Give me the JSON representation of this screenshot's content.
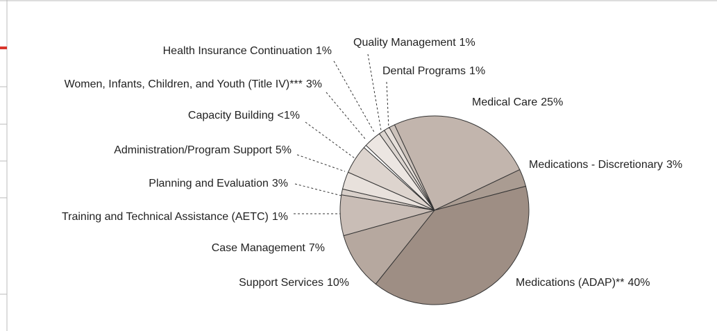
{
  "chart_data": {
    "type": "pie",
    "categories": [
      "Quality Management",
      "Dental Programs",
      "Medical Care",
      "Medications - Discretionary",
      "Medications (ADAP)**",
      "Support Services",
      "Case Management",
      "Training and Technical Assistance (AETC)",
      "Planning and Evaluation",
      "Administration/Program Support",
      "Capacity Building",
      "Women, Infants, Children, and Youth (Title IV)***",
      "Health Insurance Continuation"
    ],
    "values": [
      1,
      1,
      25,
      3,
      40,
      10,
      7,
      1,
      3,
      5,
      0.5,
      3,
      1
    ],
    "value_labels": [
      "1%",
      "1%",
      "25%",
      "3%",
      "40%",
      "10%",
      "7%",
      "1%",
      "3%",
      "5%",
      "<1%",
      "3%",
      "1%"
    ],
    "colors": [
      "#e6dfda",
      "#cdc3bc",
      "#c2b5ad",
      "#aa9c92",
      "#9e8e84",
      "#b6a89f",
      "#c9bdb6",
      "#d9d0ca",
      "#e8e1dc",
      "#ddd4ce",
      "#ffffff",
      "#ece6e2",
      "#dcd5d0"
    ]
  }
}
